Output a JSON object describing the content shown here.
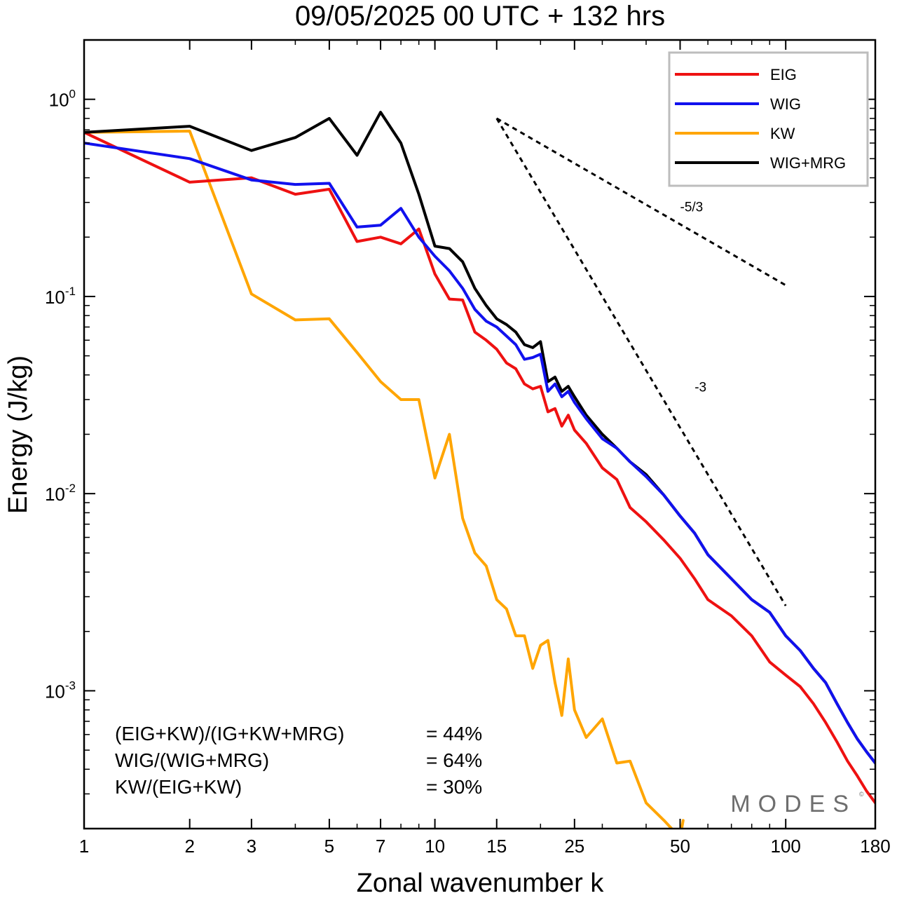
{
  "chart_data": {
    "type": "line",
    "title": "09/05/2025  00 UTC  + 132 hrs",
    "xlabel": "Zonal wavenumber k",
    "ylabel": "Energy (J/kg)",
    "x_scale": "log",
    "y_scale": "log",
    "xlim": [
      1,
      180
    ],
    "ylim": [
      0.0002,
      2.0
    ],
    "grid": false,
    "legend_position": "top-right",
    "x_ticks": [
      {
        "value": 1,
        "label": "1"
      },
      {
        "value": 2,
        "label": "2"
      },
      {
        "value": 3,
        "label": "3"
      },
      {
        "value": 5,
        "label": "5"
      },
      {
        "value": 7,
        "label": "7"
      },
      {
        "value": 10,
        "label": "10"
      },
      {
        "value": 15,
        "label": "15"
      },
      {
        "value": 25,
        "label": "25"
      },
      {
        "value": 50,
        "label": "50"
      },
      {
        "value": 100,
        "label": "100"
      },
      {
        "value": 180,
        "label": "180"
      }
    ],
    "y_ticks": [
      {
        "value": 1,
        "base": "10",
        "exp": "0"
      },
      {
        "value": 0.1,
        "base": "10",
        "exp": "-1"
      },
      {
        "value": 0.01,
        "base": "10",
        "exp": "-2"
      },
      {
        "value": 0.001,
        "base": "10",
        "exp": "-3"
      }
    ],
    "series": [
      {
        "name": "EIG",
        "color": "#ee1111",
        "x": [
          1,
          2,
          3,
          4,
          5,
          6,
          7,
          8,
          9,
          10,
          11,
          12,
          13,
          14,
          15,
          16,
          17,
          18,
          19,
          20,
          21,
          22,
          23,
          24,
          25,
          27,
          30,
          33,
          36,
          40,
          45,
          50,
          55,
          60,
          70,
          80,
          90,
          100,
          110,
          120,
          130,
          140,
          150,
          160,
          170,
          180
        ],
        "y": [
          0.68,
          0.38,
          0.4,
          0.33,
          0.35,
          0.19,
          0.2,
          0.185,
          0.22,
          0.13,
          0.097,
          0.096,
          0.066,
          0.06,
          0.054,
          0.046,
          0.043,
          0.036,
          0.034,
          0.035,
          0.026,
          0.027,
          0.022,
          0.025,
          0.021,
          0.018,
          0.0135,
          0.0118,
          0.0085,
          0.0072,
          0.0058,
          0.0047,
          0.0037,
          0.0029,
          0.0024,
          0.0019,
          0.0014,
          0.0012,
          0.00105,
          0.00086,
          0.00069,
          0.00055,
          0.00044,
          0.00037,
          0.00031,
          0.00027
        ]
      },
      {
        "name": "WIG",
        "color": "#1111ee",
        "x": [
          1,
          2,
          3,
          4,
          5,
          6,
          7,
          8,
          9,
          10,
          11,
          12,
          13,
          14,
          15,
          16,
          17,
          18,
          19,
          20,
          21,
          22,
          23,
          24,
          25,
          27,
          30,
          33,
          36,
          40,
          45,
          50,
          55,
          60,
          70,
          80,
          90,
          100,
          110,
          120,
          130,
          140,
          150,
          160,
          170,
          180
        ],
        "y": [
          0.6,
          0.5,
          0.39,
          0.37,
          0.375,
          0.225,
          0.23,
          0.28,
          0.2,
          0.16,
          0.135,
          0.11,
          0.086,
          0.075,
          0.07,
          0.063,
          0.057,
          0.048,
          0.049,
          0.051,
          0.033,
          0.036,
          0.031,
          0.033,
          0.029,
          0.024,
          0.019,
          0.017,
          0.0145,
          0.0122,
          0.0098,
          0.0077,
          0.0063,
          0.0049,
          0.0037,
          0.0029,
          0.0025,
          0.0019,
          0.0016,
          0.0013,
          0.0011,
          0.00086,
          0.00069,
          0.00057,
          0.00049,
          0.00043
        ]
      },
      {
        "name": "KW",
        "color": "#ffa500",
        "x": [
          1,
          2,
          3,
          4,
          5,
          6,
          7,
          8,
          9,
          10,
          11,
          12,
          13,
          14,
          15,
          16,
          17,
          18,
          19,
          20,
          21,
          22,
          23,
          24,
          25,
          27,
          30,
          33,
          36,
          40,
          45,
          50,
          51
        ],
        "y": [
          0.68,
          0.69,
          0.103,
          0.076,
          0.077,
          0.052,
          0.037,
          0.03,
          0.03,
          0.012,
          0.02,
          0.0075,
          0.005,
          0.0043,
          0.0029,
          0.0026,
          0.0019,
          0.0019,
          0.0013,
          0.0017,
          0.0018,
          0.0011,
          0.00075,
          0.00145,
          0.0008,
          0.00058,
          0.00072,
          0.00043,
          0.00044,
          0.00027,
          0.00022,
          0.00018,
          0.00022
        ]
      },
      {
        "name": "WIG+MRG",
        "color": "#000000",
        "x": [
          1,
          2,
          3,
          4,
          5,
          6,
          7,
          8,
          9,
          10,
          11,
          12,
          13,
          14,
          15,
          16,
          17,
          18,
          19,
          20,
          21,
          22,
          23,
          24,
          25,
          27,
          30,
          33,
          36,
          40,
          45,
          50,
          55,
          60,
          70,
          80,
          90,
          100,
          110,
          120,
          130,
          140,
          150,
          160,
          170,
          180
        ],
        "y": [
          0.68,
          0.73,
          0.55,
          0.64,
          0.8,
          0.52,
          0.86,
          0.6,
          0.33,
          0.18,
          0.175,
          0.15,
          0.11,
          0.09,
          0.077,
          0.072,
          0.066,
          0.057,
          0.055,
          0.059,
          0.037,
          0.039,
          0.033,
          0.035,
          0.031,
          0.025,
          0.02,
          0.017,
          0.0145,
          0.0125,
          0.0098,
          0.0077,
          0.0063,
          0.0049,
          0.0037,
          0.0029,
          0.0025,
          0.0019,
          0.0016,
          0.0013,
          0.0011,
          0.00086,
          0.00069,
          0.00057,
          0.00049,
          0.00043
        ]
      }
    ],
    "reference_lines": [
      {
        "label": "-5/3",
        "slope": -1.6667,
        "x": [
          15,
          100
        ],
        "y": [
          0.8,
          0.114
        ],
        "label_at": [
          50,
          0.27
        ]
      },
      {
        "label": "-3",
        "slope": -3,
        "x": [
          15,
          100
        ],
        "y": [
          0.8,
          0.0027
        ],
        "label_at": [
          55,
          0.033
        ]
      }
    ],
    "stats": [
      {
        "label": "(EIG+KW)/(IG+KW+MRG)",
        "value": "= 44%"
      },
      {
        "label": "WIG/(WIG+MRG)",
        "value": "= 64%"
      },
      {
        "label": "KW/(EIG+KW)",
        "value": "= 30%"
      }
    ],
    "logo": "MODES"
  }
}
